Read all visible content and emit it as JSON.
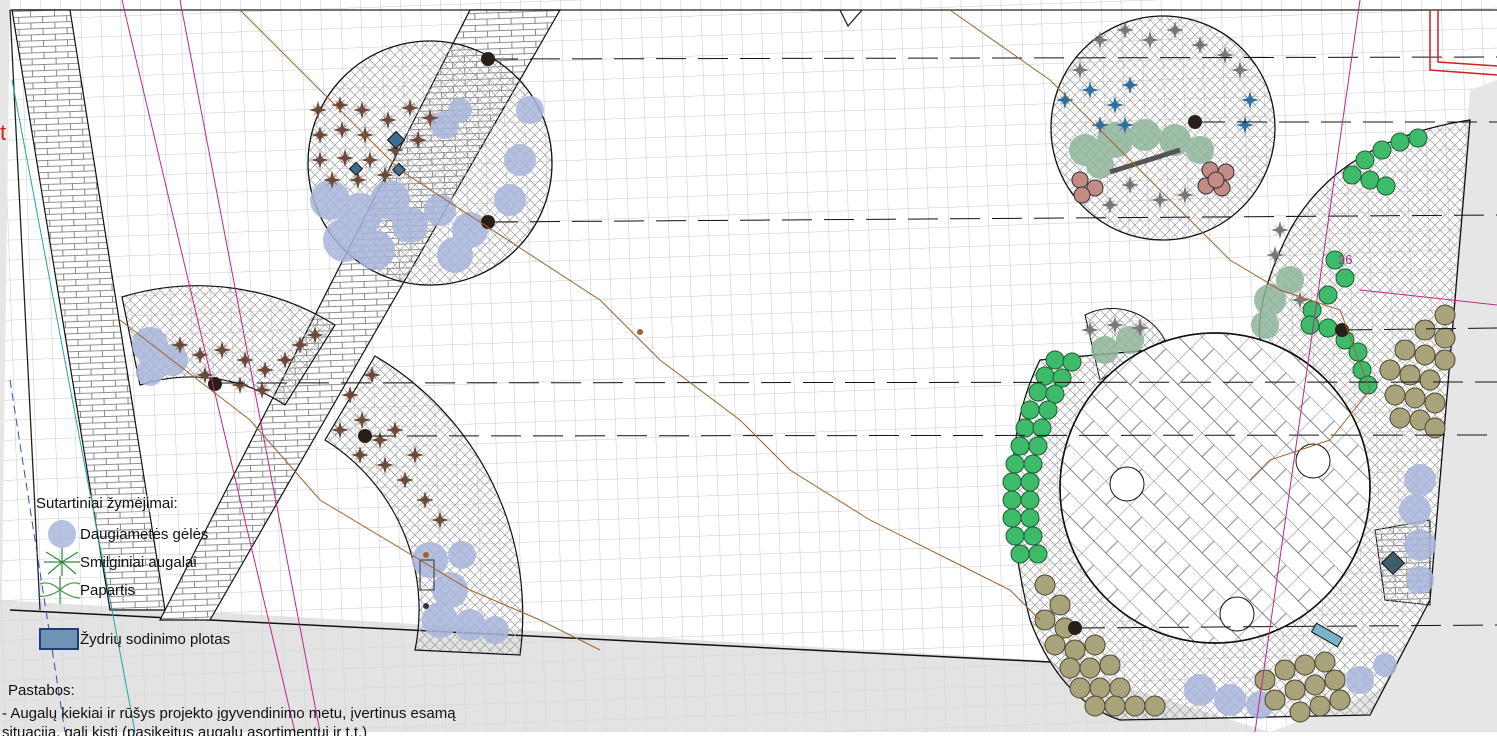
{
  "legend": {
    "title": "Sutartiniai žymėjimai:",
    "items": [
      {
        "label": "Daugiametės gėlės",
        "icon": "perennial-flowers-icon",
        "color": "#a9b5da"
      },
      {
        "label": "Smilginiai augalai",
        "icon": "ornamental-grass-icon",
        "color": "#2f8a3a"
      },
      {
        "label": "Papartis",
        "icon": "fern-icon",
        "color": "#4a9a55"
      },
      {
        "label": "Žydrių sodinimo plotas",
        "icon": "blue-planting-area-icon",
        "color": "#6f93b3"
      }
    ]
  },
  "notes": {
    "title": "Pastabos:",
    "line1": "- Augalų kiekiai ir rūšys projekto įgyvendinimo metu, įvertinus esamą",
    "line2": "situaciją, gali kisti (pasikeitus augalų asortimentui ir t.t.)"
  },
  "labels": {
    "t_marker": "t",
    "num_marker": "26"
  },
  "colors": {
    "grid": "#bfc3c7",
    "outside": "#e6e6e6",
    "perennials": "#a9b5da",
    "grass_dark": "#6b4a3a",
    "grass_gray": "#777777",
    "fern_blue": "#2f6fa0",
    "shrub_green": "#3dbb6a",
    "shrub_olive": "#a8a37a",
    "shrub_rose": "#c48a85",
    "sage": "#8fb59a",
    "path_brown": "#a0622d",
    "magenta": "#c0288a",
    "red": "#d32020"
  }
}
